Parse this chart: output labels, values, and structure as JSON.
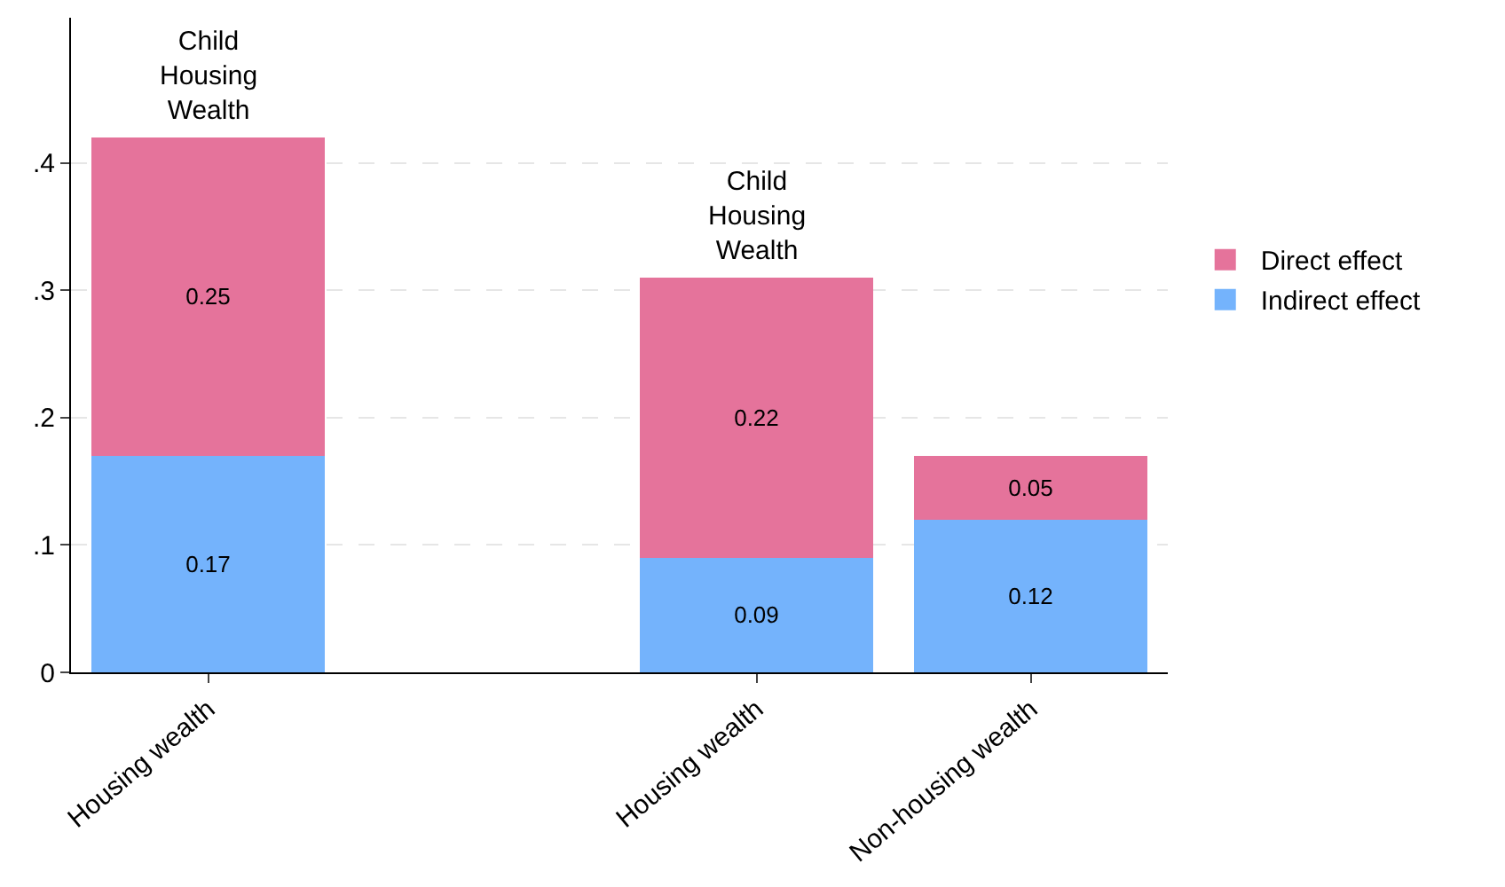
{
  "chart_data": {
    "type": "bar",
    "stacked": true,
    "categories": [
      "Housing wealth",
      null,
      "Housing wealth",
      "Non-housing wealth"
    ],
    "series": [
      {
        "name": "Indirect effect",
        "color": "#74b3fc",
        "values": [
          0.17,
          null,
          0.09,
          0.12
        ]
      },
      {
        "name": "Direct effect",
        "color": "#e5739b",
        "values": [
          0.25,
          null,
          0.22,
          0.05
        ]
      }
    ],
    "data_labels": true,
    "ylim": [
      0,
      0.514
    ],
    "yticks": [
      {
        "value": 0,
        "label": "0"
      },
      {
        "value": 0.1,
        "label": ".1"
      },
      {
        "value": 0.2,
        "label": ".2"
      },
      {
        "value": 0.3,
        "label": ".3"
      },
      {
        "value": 0.4,
        "label": ".4"
      }
    ],
    "grid": "y",
    "legend": "right",
    "annotations": [
      "Child\nHousing\nWealth",
      "Child\nHousing\nWealth"
    ]
  }
}
